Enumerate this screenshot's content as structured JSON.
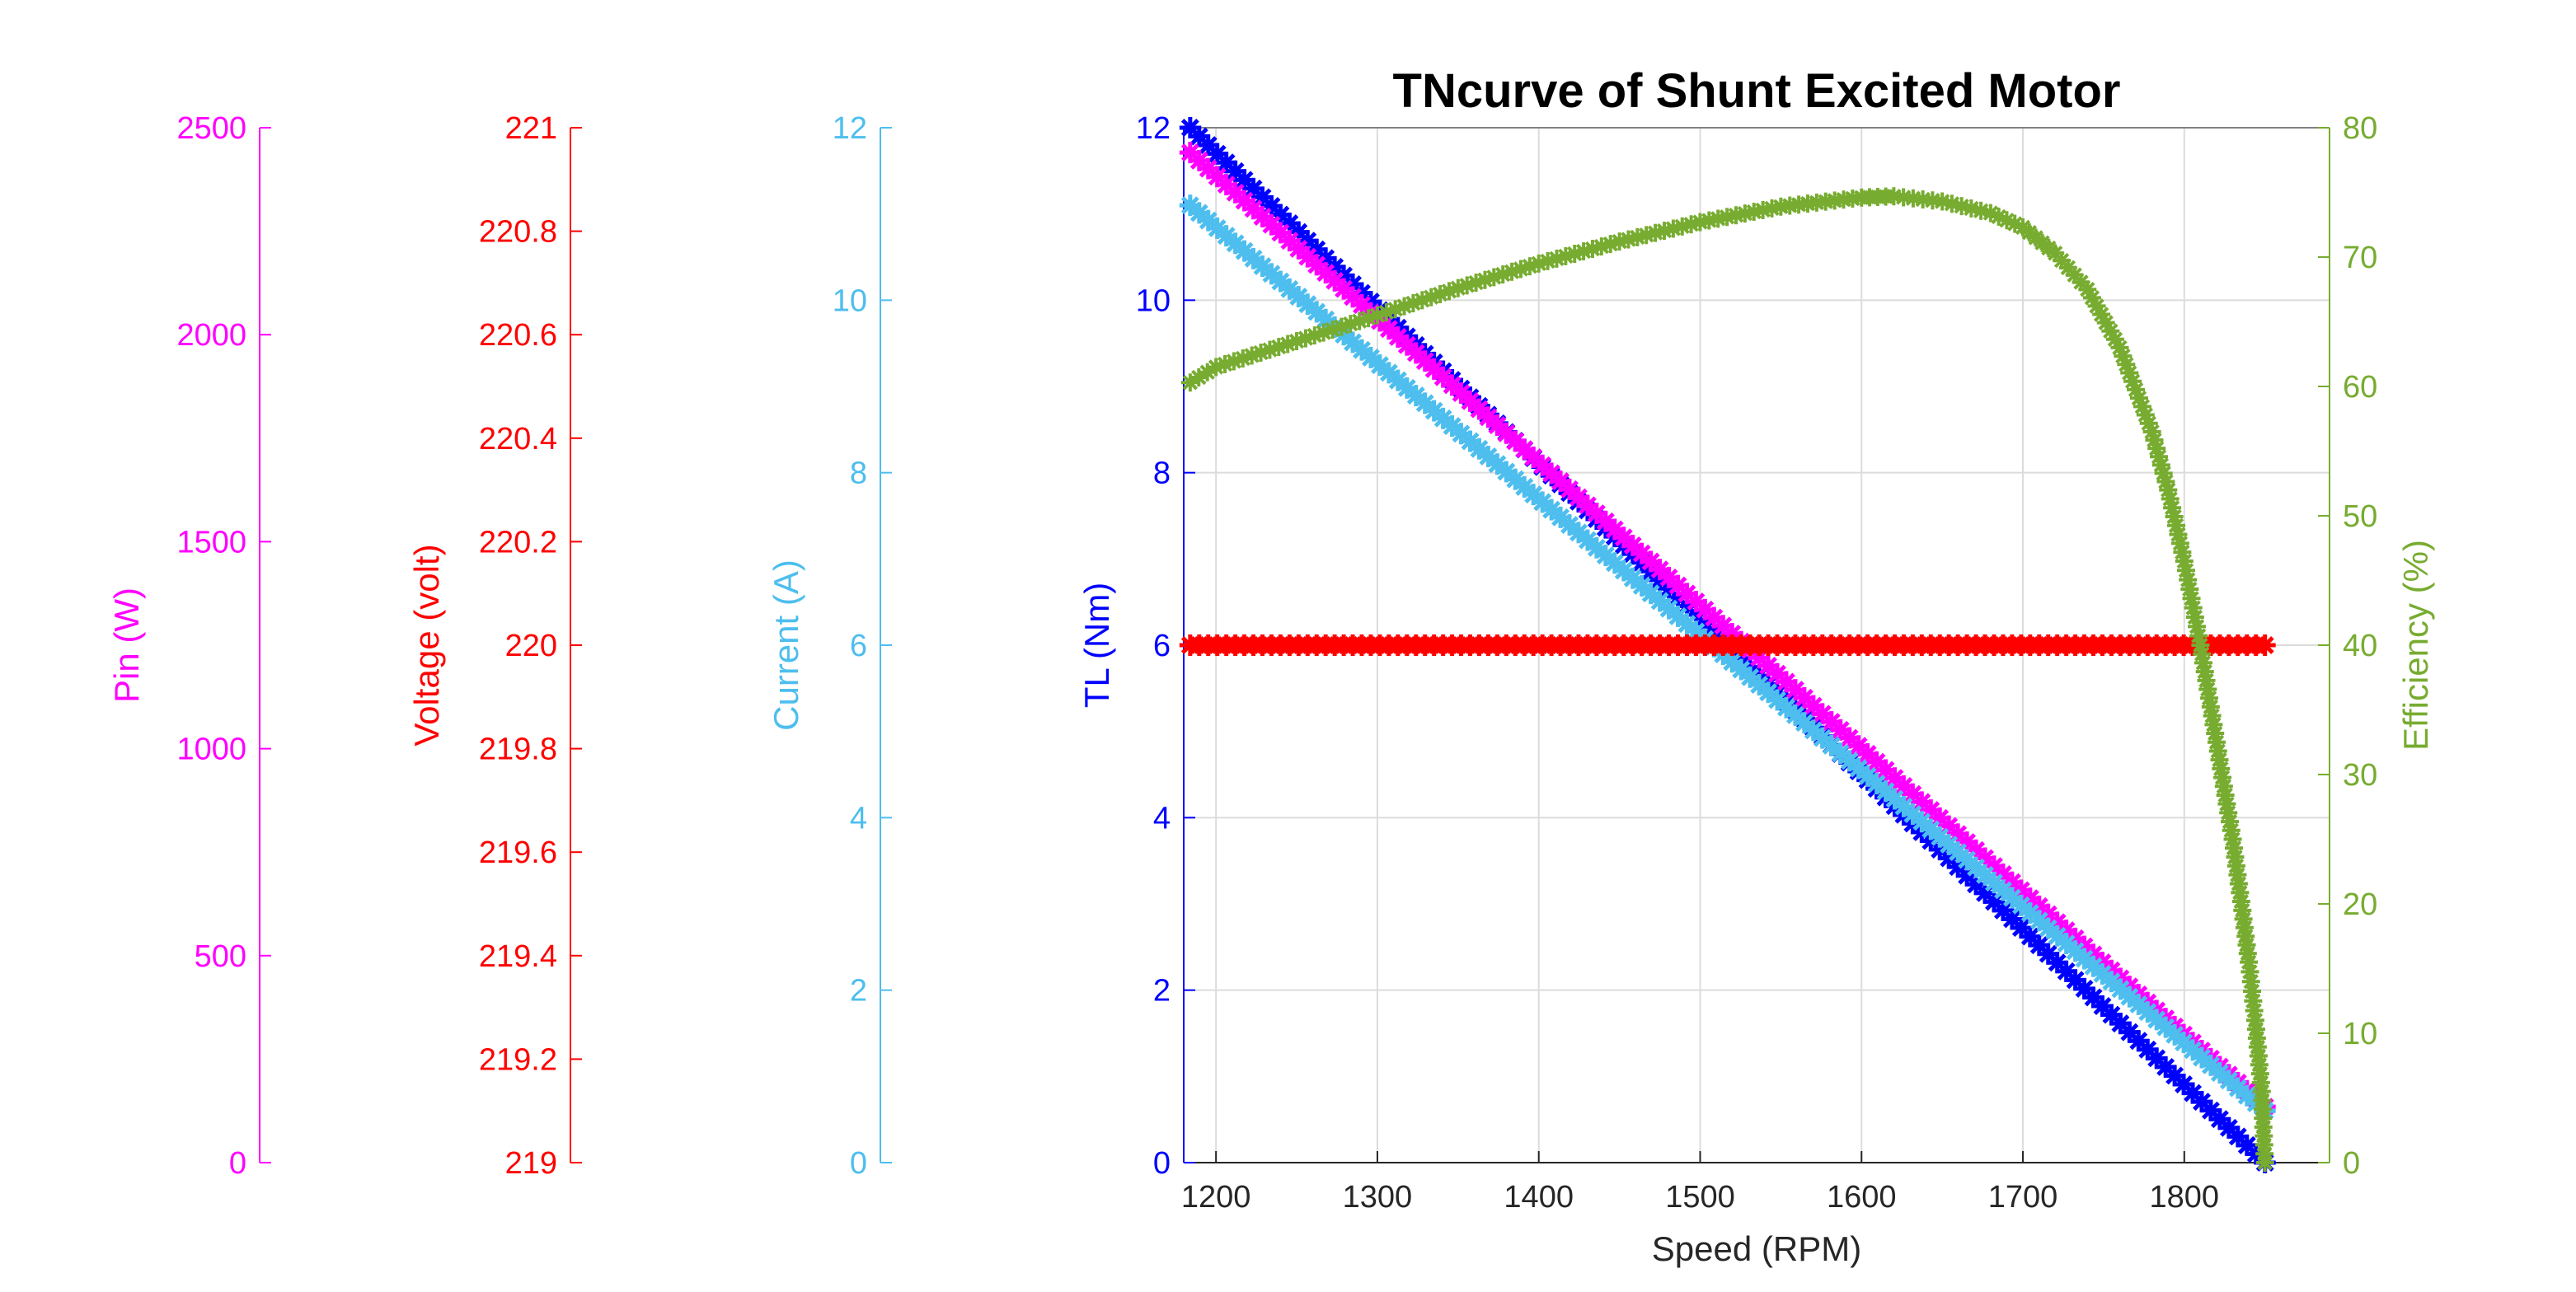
{
  "chart_data": {
    "type": "line",
    "title": "TNcurve of Shunt Excited Motor",
    "xlabel": "Speed (RPM)",
    "xlim": [
      1180,
      1890
    ],
    "xticks": [
      1200,
      1300,
      1400,
      1500,
      1600,
      1700,
      1800
    ],
    "grid": true,
    "axes": [
      {
        "id": "pin",
        "label": "Pin (W)",
        "color": "#ff00ff",
        "ylim": [
          0,
          2500
        ],
        "ticks": [
          0,
          500,
          1000,
          1500,
          2000,
          2500
        ]
      },
      {
        "id": "voltage",
        "label": "Voltage (volt)",
        "color": "#ff0000",
        "ylim": [
          219,
          221
        ],
        "ticks": [
          "219",
          "219.2",
          "219.4",
          "219.6",
          "219.8",
          "220",
          "220.2",
          "220.4",
          "220.6",
          "220.8",
          "221"
        ]
      },
      {
        "id": "current",
        "label": "Current (A)",
        "color": "#4dbeee",
        "ylim": [
          0,
          12
        ],
        "ticks": [
          0,
          2,
          4,
          6,
          8,
          10,
          12
        ]
      },
      {
        "id": "torque",
        "label": "TL (Nm)",
        "color": "#0000ff",
        "ylim": [
          0,
          12
        ],
        "ticks": [
          0,
          2,
          4,
          6,
          8,
          10,
          12
        ]
      },
      {
        "id": "efficiency",
        "label": "Efficiency (%)",
        "color": "#77ac30",
        "ylim": [
          0,
          80
        ],
        "ticks": [
          0,
          10,
          20,
          30,
          40,
          50,
          60,
          70,
          80
        ]
      }
    ],
    "series": [
      {
        "axis": "torque",
        "color": "#0000ff",
        "marker": "asterisk",
        "x": [
          1184,
          1850
        ],
        "y": [
          12.0,
          0.0
        ],
        "points": 120
      },
      {
        "axis": "pin",
        "color": "#ff00ff",
        "marker": "asterisk",
        "x": [
          1184,
          1850
        ],
        "y": [
          2440,
          135
        ],
        "points": 120
      },
      {
        "axis": "current",
        "color": "#4dbeee",
        "marker": "asterisk",
        "x": [
          1184,
          1850
        ],
        "y": [
          11.1,
          0.6
        ],
        "points": 120
      },
      {
        "axis": "voltage",
        "color": "#ff0000",
        "marker": "asterisk",
        "x": [
          1184,
          1850
        ],
        "y": [
          220,
          220
        ],
        "points": 120
      },
      {
        "axis": "efficiency",
        "color": "#77ac30",
        "marker": "asterisk",
        "x": [
          1184,
          1200,
          1250,
          1300,
          1350,
          1400,
          1450,
          1500,
          1550,
          1600,
          1620,
          1650,
          1680,
          1700,
          1720,
          1740,
          1760,
          1780,
          1790,
          1800,
          1810,
          1820,
          1830,
          1836,
          1840,
          1844,
          1848,
          1850
        ],
        "y": [
          60.3,
          61.5,
          63.5,
          65.5,
          67.6,
          69.5,
          71.2,
          72.7,
          73.9,
          74.6,
          74.7,
          74.3,
          73.4,
          72.3,
          70.3,
          67.5,
          63.0,
          56.5,
          52.0,
          46.5,
          40.0,
          32.5,
          25.0,
          19.5,
          15.5,
          11.0,
          5.5,
          0.0
        ]
      }
    ]
  }
}
